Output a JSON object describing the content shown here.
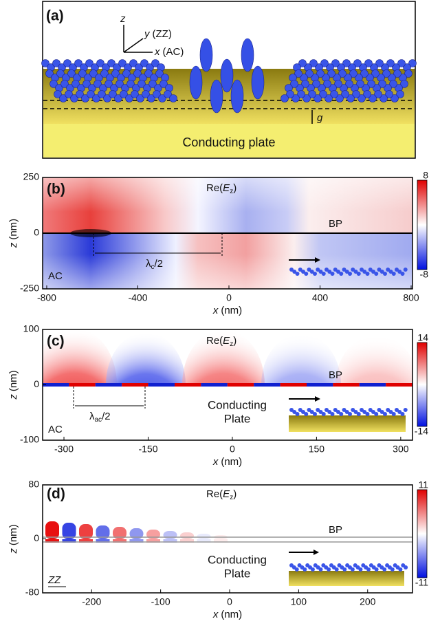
{
  "panel_a": {
    "label": "(a)",
    "axis_z": "z",
    "axis_y": "y",
    "axis_y_dir": "(ZZ)",
    "axis_x": "x",
    "axis_x_dir": "(AC)",
    "gap": "g",
    "plate": "Conducting plate"
  },
  "panel_b": {
    "label": "(b)",
    "field": {
      "prefix": "Re(",
      "var": "E",
      "sub": "z",
      "suffix": ")"
    },
    "layer": "BP",
    "direction": "AC",
    "wavelength": {
      "symbol": "λ",
      "sub": "c",
      "suffix": "/2"
    },
    "xlabel": {
      "var": "x",
      "unit": "(nm)"
    },
    "ylabel": {
      "var": "z",
      "unit": "(nm)"
    },
    "xlim": [
      -818,
      806
    ],
    "xticks": [
      -800,
      -400,
      0,
      400,
      800
    ],
    "ylim": [
      -250,
      250
    ],
    "yticks": [
      250,
      0,
      -250
    ],
    "colorbar": [
      8,
      -8
    ]
  },
  "panel_c": {
    "label": "(c)",
    "field": {
      "prefix": "Re(",
      "var": "E",
      "sub": "z",
      "suffix": ")"
    },
    "layer": "BP",
    "direction": "AC",
    "plate": [
      "Conducting",
      "Plate"
    ],
    "wavelength": {
      "symbol": "λ",
      "sub": "ac",
      "suffix": "/2"
    },
    "xlabel": {
      "var": "x",
      "unit": "(nm)"
    },
    "ylabel": {
      "var": "z",
      "unit": "(nm)"
    },
    "xlim": [
      -338,
      321
    ],
    "xticks": [
      -300,
      -150,
      0,
      150,
      300
    ],
    "ylim": [
      -100,
      100
    ],
    "yticks": [
      100,
      0,
      -100
    ],
    "colorbar": [
      14,
      -14
    ]
  },
  "panel_d": {
    "label": "(d)",
    "field": {
      "prefix": "Re(",
      "var": "E",
      "sub": "z",
      "suffix": ")"
    },
    "layer": "BP",
    "direction": "ZZ",
    "plate": [
      "Conducting",
      "Plate"
    ],
    "xlabel": {
      "var": "x",
      "unit": "(nm)"
    },
    "ylabel": {
      "var": "z",
      "unit": "(nm)"
    },
    "xlim": [
      -271,
      265
    ],
    "xticks": [
      -200,
      -100,
      0,
      100,
      200
    ],
    "ylim": [
      -80,
      80
    ],
    "yticks": [
      80,
      0,
      -80
    ],
    "colorbar": [
      11,
      -11
    ]
  }
}
